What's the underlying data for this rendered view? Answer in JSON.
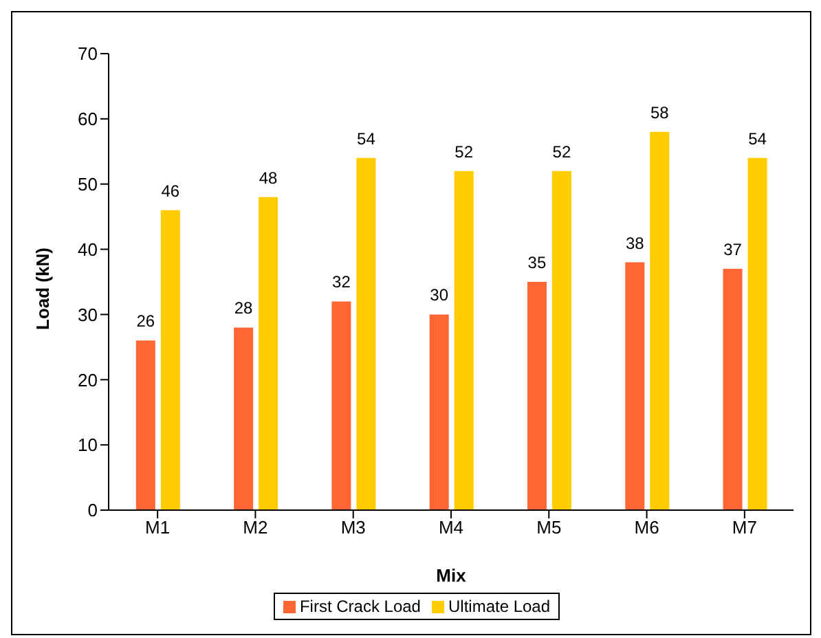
{
  "chart_data": {
    "type": "bar",
    "xlabel": "Mix",
    "ylabel": "Load (kN)",
    "categories": [
      "M1",
      "M2",
      "M3",
      "M4",
      "M5",
      "M6",
      "M7"
    ],
    "series": [
      {
        "name": "First Crack Load",
        "color": "#ff6633",
        "values": [
          26,
          28,
          32,
          30,
          35,
          38,
          37
        ]
      },
      {
        "name": "Ultimate Load",
        "color": "#ffcc00",
        "values": [
          46,
          48,
          54,
          52,
          52,
          58,
          54
        ]
      }
    ],
    "ylim": [
      0,
      70
    ],
    "yticks": [
      0,
      10,
      20,
      30,
      40,
      50,
      60,
      70
    ],
    "grid": false,
    "legend": "bottom",
    "data_labels": true
  }
}
